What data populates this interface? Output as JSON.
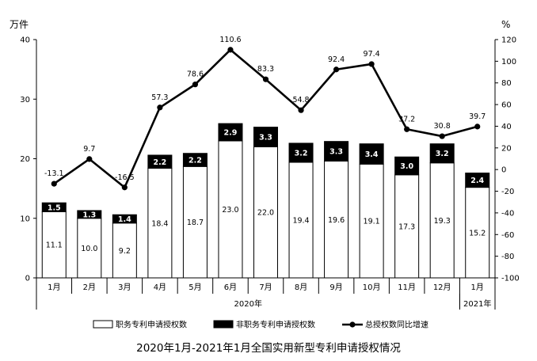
{
  "chart_data": {
    "type": "bar",
    "title": "2020年1月-2021年1月全国实用新型专利申请授权情况",
    "left_unit": "万件",
    "right_unit": "%",
    "categories": [
      "1月",
      "2月",
      "3月",
      "4月",
      "5月",
      "6月",
      "7月",
      "8月",
      "9月",
      "10月",
      "11月",
      "12月",
      "1月"
    ],
    "year_groups": [
      {
        "label": "2020年",
        "start": 0,
        "end": 11
      },
      {
        "label": "2021年",
        "start": 12,
        "end": 12
      }
    ],
    "ylim_left": [
      0,
      40
    ],
    "yticks_left": [
      0,
      10,
      20,
      30,
      40
    ],
    "ylim_right": [
      -100,
      120
    ],
    "yticks_right": [
      -100,
      -80,
      -60,
      -40,
      -20,
      0,
      20,
      40,
      60,
      80,
      100,
      120
    ],
    "series": [
      {
        "name": "职务专利申请授权数",
        "kind": "bar",
        "color": "#ffffff",
        "values": [
          11.1,
          10.0,
          9.2,
          18.4,
          18.7,
          23.0,
          22.0,
          19.4,
          19.6,
          19.1,
          17.3,
          19.3,
          15.2
        ]
      },
      {
        "name": "非职务专利申请授权数",
        "kind": "bar",
        "color": "#000000",
        "values": [
          1.5,
          1.3,
          1.4,
          2.2,
          2.2,
          2.9,
          3.3,
          3.2,
          3.3,
          3.4,
          3.0,
          3.2,
          2.4
        ]
      },
      {
        "name": "总授权数同比增速",
        "kind": "line",
        "axis": "right",
        "color": "#000000",
        "values": [
          -13.1,
          9.7,
          -16.5,
          57.3,
          78.6,
          110.6,
          83.3,
          54.8,
          92.4,
          97.4,
          37.2,
          30.8,
          39.7
        ]
      }
    ],
    "grid": false,
    "legend_position": "bottom"
  }
}
